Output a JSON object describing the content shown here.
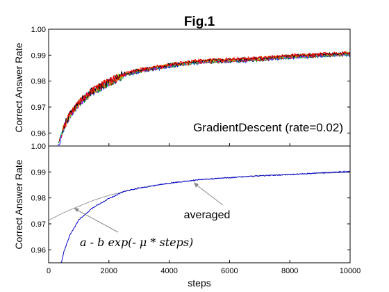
{
  "chart_data": [
    {
      "type": "line",
      "title": "Fig.1",
      "panel": "top",
      "xlabel": "",
      "ylabel": "Correct Answer Rate",
      "xlim": [
        0,
        10000
      ],
      "ylim": [
        0.955,
        1.0
      ],
      "y_ticks": [
        "0.96",
        "0.97",
        "0.98",
        "0.99",
        "1.00"
      ],
      "annotation": "GradientDescent (rate=0.02)",
      "series_colors": [
        "#0000ff",
        "#008000",
        "#ff0000",
        "#00bfbf",
        "#bf00bf",
        "#bfbf00",
        "#000000",
        "#ff0000"
      ],
      "series": [
        {
          "x": [
            300,
            500,
            700,
            1000,
            1500,
            2000,
            2500,
            3000,
            4000,
            5000,
            6000,
            7000,
            8000,
            9000,
            10000
          ],
          "values": [
            0.955,
            0.962,
            0.967,
            0.9715,
            0.9765,
            0.9795,
            0.9825,
            0.984,
            0.986,
            0.9875,
            0.988,
            0.9885,
            0.9895,
            0.99,
            0.9905
          ]
        }
      ]
    },
    {
      "type": "line",
      "panel": "bottom",
      "xlabel": "steps",
      "ylabel": "Correct Answer Rate",
      "xlim": [
        0,
        10000
      ],
      "ylim": [
        0.955,
        1.0
      ],
      "x_ticks": [
        "0",
        "2000",
        "4000",
        "6000",
        "8000",
        "10000"
      ],
      "y_ticks": [
        "0.96",
        "0.97",
        "0.98",
        "0.99",
        "1.00"
      ],
      "annotations": [
        "averaged",
        "a - b exp(- μ * steps)"
      ],
      "series": [
        {
          "color": "#0000cc",
          "x": [
            350,
            500,
            700,
            1000,
            1500,
            2000,
            2500,
            3000,
            4000,
            5000,
            6000,
            7000,
            8000,
            9000,
            10000
          ],
          "values": [
            0.951,
            0.959,
            0.9655,
            0.9715,
            0.9765,
            0.9798,
            0.9825,
            0.9838,
            0.9857,
            0.987,
            0.9878,
            0.9885,
            0.989,
            0.9896,
            0.9902
          ]
        },
        {
          "color": "#999999",
          "x": [
            0,
            500,
            1000,
            1500,
            2000,
            3000,
            4000,
            5000,
            6000,
            7000,
            8000,
            9000,
            10000
          ],
          "values": [
            0.9714,
            0.9743,
            0.9768,
            0.9791,
            0.981,
            0.9838,
            0.9856,
            0.987,
            0.9879,
            0.9886,
            0.9891,
            0.9895,
            0.9898
          ]
        }
      ]
    }
  ]
}
